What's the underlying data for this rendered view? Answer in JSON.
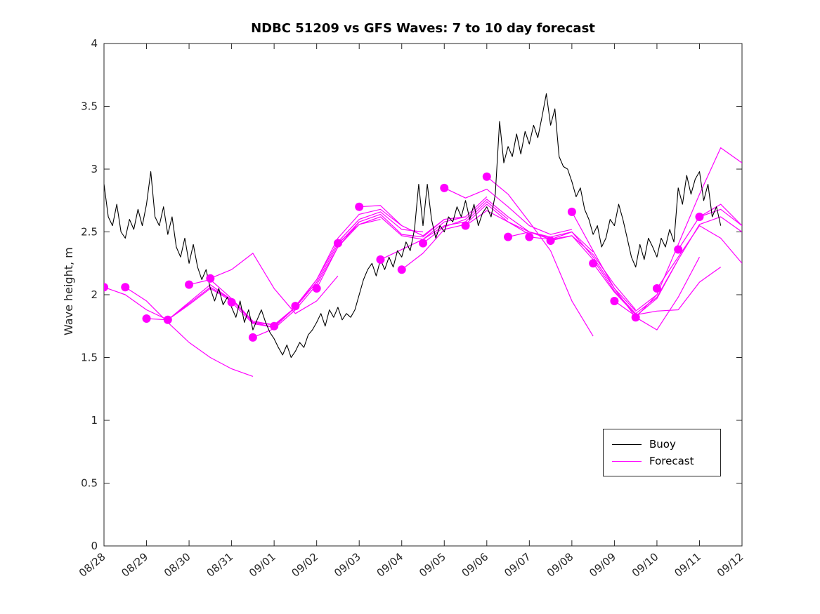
{
  "title": "NDBC 51209 vs GFS Waves: 7 to 10 day forecast",
  "ylabel": "Wave height, m",
  "legend": {
    "buoy": "Buoy",
    "forecast": "Forecast"
  },
  "colors": {
    "buoy": "#000000",
    "forecast": "#FF00FF",
    "axis": "#262626"
  },
  "chart_data": {
    "type": "line",
    "title": "NDBC 51209 vs GFS Waves: 7 to 10 day forecast",
    "xlabel": "",
    "ylabel": "Wave height, m",
    "xlim": [
      0,
      15
    ],
    "ylim": [
      0,
      4
    ],
    "grid": false,
    "legend_position": "lower right",
    "x_ticks": [
      0,
      1,
      2,
      3,
      4,
      5,
      6,
      7,
      8,
      9,
      10,
      11,
      12,
      13,
      14,
      15
    ],
    "x_ticklabels": [
      "08/28",
      "08/29",
      "08/30",
      "08/31",
      "09/01",
      "09/02",
      "09/03",
      "09/04",
      "09/05",
      "09/06",
      "09/07",
      "09/08",
      "09/09",
      "09/10",
      "09/11",
      "09/12"
    ],
    "y_ticks": [
      0,
      0.5,
      1,
      1.5,
      2,
      2.5,
      3,
      3.5,
      4
    ],
    "y_ticklabels": [
      "0",
      "0.5",
      "1",
      "1.5",
      "2",
      "2.5",
      "3",
      "3.5",
      "4"
    ],
    "buoy": {
      "name": "Buoy",
      "x_start": 0,
      "x_step": 0.1,
      "values": [
        2.88,
        2.62,
        2.55,
        2.72,
        2.5,
        2.45,
        2.6,
        2.52,
        2.68,
        2.55,
        2.72,
        2.98,
        2.62,
        2.55,
        2.7,
        2.48,
        2.62,
        2.38,
        2.3,
        2.45,
        2.25,
        2.4,
        2.22,
        2.12,
        2.2,
        2.05,
        1.95,
        2.05,
        1.92,
        1.98,
        1.9,
        1.82,
        1.95,
        1.78,
        1.88,
        1.72,
        1.8,
        1.88,
        1.78,
        1.7,
        1.65,
        1.58,
        1.52,
        1.6,
        1.5,
        1.55,
        1.62,
        1.58,
        1.68,
        1.72,
        1.78,
        1.85,
        1.75,
        1.88,
        1.82,
        1.9,
        1.8,
        1.85,
        1.82,
        1.88,
        2.0,
        2.12,
        2.2,
        2.25,
        2.15,
        2.28,
        2.2,
        2.3,
        2.22,
        2.35,
        2.3,
        2.42,
        2.35,
        2.52,
        2.88,
        2.55,
        2.88,
        2.6,
        2.45,
        2.55,
        2.5,
        2.62,
        2.58,
        2.7,
        2.62,
        2.75,
        2.6,
        2.72,
        2.55,
        2.65,
        2.7,
        2.62,
        2.8,
        3.38,
        3.05,
        3.18,
        3.1,
        3.28,
        3.12,
        3.3,
        3.2,
        3.35,
        3.25,
        3.42,
        3.6,
        3.35,
        3.48,
        3.1,
        3.02,
        3.0,
        2.9,
        2.78,
        2.85,
        2.68,
        2.6,
        2.48,
        2.55,
        2.38,
        2.45,
        2.6,
        2.55,
        2.72,
        2.6,
        2.45,
        2.3,
        2.22,
        2.4,
        2.28,
        2.45,
        2.38,
        2.3,
        2.45,
        2.38,
        2.52,
        2.42,
        2.85,
        2.72,
        2.95,
        2.8,
        2.92,
        2.98,
        2.75,
        2.88,
        2.62,
        2.7,
        2.55
      ]
    },
    "forecast_runs": [
      {
        "x_start": 0.0,
        "x_step": 0.5,
        "values": [
          2.06,
          2.0,
          1.88,
          1.8,
          1.92,
          2.05,
          1.95
        ]
      },
      {
        "x_start": 0.5,
        "x_step": 0.5,
        "values": [
          2.06,
          1.95,
          1.78,
          1.62,
          1.5,
          1.41,
          1.35
        ]
      },
      {
        "x_start": 1.0,
        "x_step": 0.5,
        "values": [
          1.81,
          1.8,
          1.93,
          2.06,
          1.96,
          1.78,
          1.74
        ]
      },
      {
        "x_start": 1.5,
        "x_step": 0.5,
        "values": [
          1.8,
          1.94,
          2.08,
          1.96,
          1.78,
          1.76,
          1.9
        ]
      },
      {
        "x_start": 2.0,
        "x_step": 0.5,
        "values": [
          2.08,
          2.12,
          1.97,
          1.79,
          1.76,
          1.9,
          2.1
        ]
      },
      {
        "x_start": 2.5,
        "x_step": 0.5,
        "values": [
          2.13,
          2.2,
          2.33,
          2.05,
          1.85,
          1.95,
          2.15
        ]
      },
      {
        "x_start": 3.0,
        "x_step": 0.5,
        "values": [
          1.94,
          1.77,
          1.74,
          1.9,
          2.1,
          2.4,
          2.58
        ]
      },
      {
        "x_start": 3.5,
        "x_step": 0.5,
        "values": [
          1.66,
          1.73,
          1.88,
          2.08,
          2.38,
          2.56,
          2.6
        ]
      },
      {
        "x_start": 4.0,
        "x_step": 0.5,
        "values": [
          1.75,
          1.9,
          2.12,
          2.45,
          2.64,
          2.68,
          2.55
        ]
      },
      {
        "x_start": 4.5,
        "x_step": 0.5,
        "values": [
          1.91,
          2.12,
          2.42,
          2.6,
          2.66,
          2.52,
          2.5
        ]
      },
      {
        "x_start": 5.0,
        "x_step": 0.5,
        "values": [
          2.05,
          2.38,
          2.58,
          2.64,
          2.48,
          2.46,
          2.6
        ]
      },
      {
        "x_start": 5.5,
        "x_step": 0.5,
        "values": [
          2.41,
          2.56,
          2.62,
          2.47,
          2.44,
          2.58,
          2.62
        ]
      },
      {
        "x_start": 6.0,
        "x_step": 0.5,
        "values": [
          2.7,
          2.71,
          2.55,
          2.47,
          2.6,
          2.62,
          2.78
        ]
      },
      {
        "x_start": 6.5,
        "x_step": 0.5,
        "values": [
          2.28,
          2.36,
          2.44,
          2.55,
          2.58,
          2.74,
          2.6
        ]
      },
      {
        "x_start": 7.0,
        "x_step": 0.5,
        "values": [
          2.2,
          2.33,
          2.52,
          2.56,
          2.72,
          2.58,
          2.48
        ]
      },
      {
        "x_start": 7.5,
        "x_step": 0.5,
        "values": [
          2.41,
          2.54,
          2.6,
          2.76,
          2.62,
          2.5,
          2.45
        ]
      },
      {
        "x_start": 8.0,
        "x_step": 0.5,
        "values": [
          2.85,
          2.77,
          2.84,
          2.7,
          2.55,
          2.48,
          2.52
        ]
      },
      {
        "x_start": 8.5,
        "x_step": 0.5,
        "values": [
          2.55,
          2.67,
          2.58,
          2.5,
          2.46,
          2.5,
          2.34
        ]
      },
      {
        "x_start": 9.0,
        "x_step": 0.5,
        "values": [
          2.94,
          2.8,
          2.58,
          2.35,
          1.95,
          1.67
        ]
      },
      {
        "x_start": 9.5,
        "x_step": 0.5,
        "values": [
          2.46,
          2.5,
          2.44,
          2.47,
          2.32,
          2.08,
          1.88
        ]
      },
      {
        "x_start": 10.0,
        "x_step": 0.5,
        "values": [
          2.46,
          2.44,
          2.5,
          2.3,
          2.05,
          1.87,
          2.0
        ]
      },
      {
        "x_start": 10.5,
        "x_step": 0.5,
        "values": [
          2.43,
          2.47,
          2.28,
          2.03,
          1.85,
          1.98,
          2.28
        ]
      },
      {
        "x_start": 11.0,
        "x_step": 0.5,
        "values": [
          2.66,
          2.35,
          2.05,
          1.82,
          1.72,
          1.98,
          2.3
        ]
      },
      {
        "x_start": 11.5,
        "x_step": 0.5,
        "values": [
          2.25,
          2.02,
          1.84,
          1.87,
          1.88,
          2.1,
          2.22
        ]
      },
      {
        "x_start": 12.0,
        "x_step": 0.5,
        "values": [
          1.95,
          1.83,
          1.97,
          2.28,
          2.56,
          2.62,
          2.5
        ]
      },
      {
        "x_start": 12.5,
        "x_step": 0.5,
        "values": [
          1.82,
          2.0,
          2.4,
          2.8,
          3.17,
          3.05,
          2.97
        ]
      },
      {
        "x_start": 13.0,
        "x_step": 0.5,
        "values": [
          2.05,
          2.3,
          2.55,
          2.45,
          2.25
        ]
      },
      {
        "x_start": 13.5,
        "x_step": 0.5,
        "values": [
          2.36,
          2.62,
          2.68,
          2.55
        ]
      },
      {
        "x_start": 14.0,
        "x_step": 0.5,
        "values": [
          2.62,
          2.72,
          2.55
        ]
      }
    ],
    "markers": [
      [
        0.0,
        2.06
      ],
      [
        0.5,
        2.06
      ],
      [
        1.0,
        1.81
      ],
      [
        1.5,
        1.8
      ],
      [
        2.0,
        2.08
      ],
      [
        2.5,
        2.13
      ],
      [
        3.0,
        1.94
      ],
      [
        3.5,
        1.66
      ],
      [
        4.0,
        1.75
      ],
      [
        4.5,
        1.91
      ],
      [
        5.0,
        2.05
      ],
      [
        5.5,
        2.41
      ],
      [
        6.0,
        2.7
      ],
      [
        6.5,
        2.28
      ],
      [
        7.0,
        2.2
      ],
      [
        7.5,
        2.41
      ],
      [
        8.0,
        2.85
      ],
      [
        8.5,
        2.55
      ],
      [
        9.0,
        2.94
      ],
      [
        9.5,
        2.46
      ],
      [
        10.0,
        2.46
      ],
      [
        10.5,
        2.43
      ],
      [
        11.0,
        2.66
      ],
      [
        11.5,
        2.25
      ],
      [
        12.0,
        1.95
      ],
      [
        12.5,
        1.82
      ],
      [
        13.0,
        2.05
      ],
      [
        13.5,
        2.36
      ],
      [
        14.0,
        2.62
      ]
    ]
  }
}
